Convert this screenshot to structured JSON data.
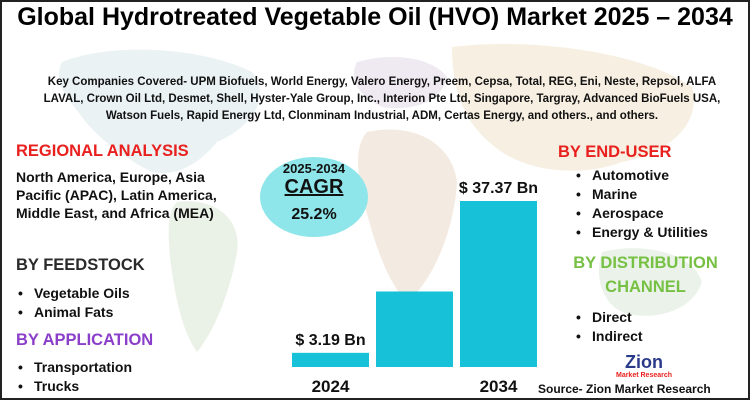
{
  "title": "Global Hydrotreated Vegetable Oil (HVO) Market 2025 – 2034",
  "companies": "Key Companies Covered- UPM Biofuels, World Energy, Valero Energy, Preem, Cepsa, Total, REG, Eni, Neste, Repsol, ALFA LAVAL, Crown Oil Ltd, Desmet, Shell, Hyster-Yale Group, Inc., Interion Pte Ltd, Singapore, Targray, Advanced BioFuels USA, Watson Fuels, Rapid Energy Ltd, Clonminam Industrial, ADM, Certas Energy, and others., and others.",
  "regional": {
    "title": "REGIONAL ANALYSIS",
    "text": "North America, Europe, Asia Pacific (APAC), Latin America, Middle East, and Africa (MEA)"
  },
  "feedstock": {
    "title": "BY FEEDSTOCK",
    "items": [
      "Vegetable Oils",
      "Animal Fats"
    ]
  },
  "application": {
    "title": "BY APPLICATION",
    "items": [
      "Transportation",
      "Trucks"
    ]
  },
  "end_user": {
    "title": "BY END-USER",
    "items": [
      "Automotive",
      "Marine",
      "Aerospace",
      "Energy & Utilities"
    ]
  },
  "distribution": {
    "title_line1": "BY DISTRIBUTION",
    "title_line2": "CHANNEL",
    "items": [
      "Direct",
      "Indirect"
    ]
  },
  "cagr": {
    "years": "2025-2034",
    "label": "CAGR",
    "value": "25.2%"
  },
  "source": "Source- Zion Market Research",
  "logo": {
    "text": "Zion",
    "subtext": "Market Research"
  },
  "colors": {
    "bar": "#17c1d8",
    "cagr_circle": "#8ee6ea",
    "red": "#e8201e",
    "purple": "#8a3ec9",
    "green": "#76c043"
  },
  "chart_data": {
    "type": "bar",
    "categories": [
      "2024",
      "",
      "2034"
    ],
    "values": [
      3.19,
      17,
      37.37
    ],
    "data_labels": [
      "$ 3.19 Bn",
      "",
      "$ 37.37 Bn"
    ],
    "title": "",
    "xlabel": "",
    "ylabel": "",
    "grid": false,
    "legend": "none"
  }
}
